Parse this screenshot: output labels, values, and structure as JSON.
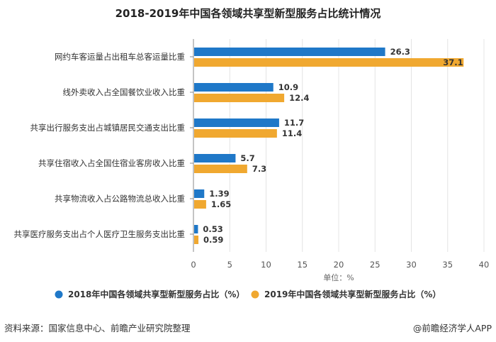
{
  "chart_data": {
    "type": "bar",
    "orientation": "horizontal",
    "title": "2018-2019年中国各领域共享型新型服务占比统计情况",
    "categories": [
      "网约车客运量占出租车总客运量比重",
      "线外卖收入占全国餐饮业收入比重",
      "共享出行服务支出占城镇居民交通支出比重",
      "共享住宿收入占全国住宿业客房收入比重",
      "共享物流收入占公路物流总收入比重",
      "共享医疗服务支出占个人医疗卫生服务支出比重"
    ],
    "series": [
      {
        "name": "2018年中国各领域共享型新型服务占比（%）",
        "color": "#1f78c8",
        "values": [
          26.3,
          10.9,
          11.7,
          5.7,
          1.39,
          0.53
        ],
        "labels": [
          "26.3",
          "10.9",
          "11.7",
          "5.7",
          "1.39",
          "0.53"
        ]
      },
      {
        "name": "2019年中国各领域共享型新型服务占比（%）",
        "color": "#f0a830",
        "values": [
          37.1,
          12.4,
          11.4,
          7.3,
          1.65,
          0.59
        ],
        "labels": [
          "37.1",
          "12.4",
          "11.4",
          "7.3",
          "1.65",
          "0.59"
        ]
      }
    ],
    "xlim": [
      0,
      40
    ],
    "xticks": [
      "0",
      "5",
      "10",
      "15",
      "20",
      "25",
      "30",
      "35",
      "40"
    ],
    "xlabel": "单位：%",
    "grid": "vertical",
    "legend": "bottom"
  },
  "footer": {
    "source": "资料来源：国家信息中心、前瞻产业研究院整理",
    "credit": "@前瞻经济学人APP"
  }
}
